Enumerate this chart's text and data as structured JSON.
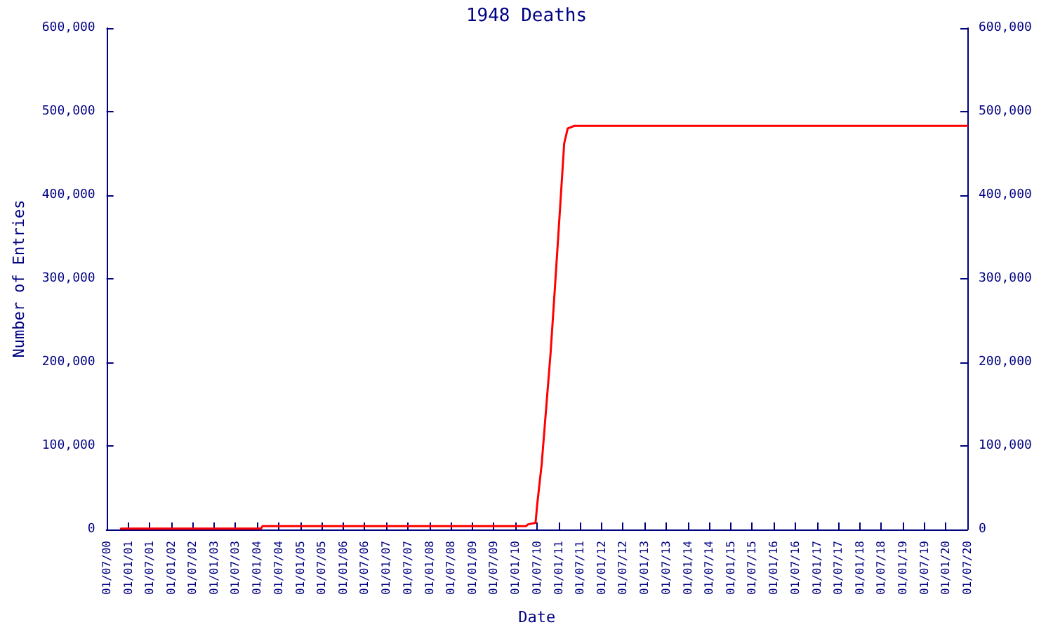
{
  "chart_data": {
    "type": "line",
    "title": "1948 Deaths",
    "xlabel": "Date",
    "ylabel": "Number of Entries",
    "x": [
      "2000-11-01",
      "2004-02-01",
      "2004-02-15",
      "2010-04-01",
      "2010-04-15",
      "2010-06-20",
      "2010-07-04",
      "2010-08-11",
      "2010-09-18",
      "2010-10-26",
      "2010-12-04",
      "2011-01-11",
      "2011-02-18",
      "2011-03-20",
      "2011-05-15",
      "2020-07-01"
    ],
    "series": [
      {
        "color": "#ff0000",
        "values": [
          1000,
          1000,
          4000,
          4000,
          6000,
          8000,
          30000,
          78000,
          145000,
          212000,
          295000,
          378000,
          462000,
          480000,
          483000,
          483000
        ]
      }
    ],
    "xlim": [
      "2000-07-01",
      "2020-07-01"
    ],
    "xticks": [
      {
        "value": "2000-07-01",
        "label": "01/07/00"
      },
      {
        "value": "2001-01-01",
        "label": "01/01/01"
      },
      {
        "value": "2001-07-01",
        "label": "01/07/01"
      },
      {
        "value": "2002-01-01",
        "label": "01/01/02"
      },
      {
        "value": "2002-07-01",
        "label": "01/07/02"
      },
      {
        "value": "2003-01-01",
        "label": "01/01/03"
      },
      {
        "value": "2003-07-01",
        "label": "01/07/03"
      },
      {
        "value": "2004-01-01",
        "label": "01/01/04"
      },
      {
        "value": "2004-07-01",
        "label": "01/07/04"
      },
      {
        "value": "2005-01-01",
        "label": "01/01/05"
      },
      {
        "value": "2005-07-01",
        "label": "01/07/05"
      },
      {
        "value": "2006-01-01",
        "label": "01/01/06"
      },
      {
        "value": "2006-07-01",
        "label": "01/07/06"
      },
      {
        "value": "2007-01-01",
        "label": "01/01/07"
      },
      {
        "value": "2007-07-01",
        "label": "01/07/07"
      },
      {
        "value": "2008-01-01",
        "label": "01/01/08"
      },
      {
        "value": "2008-07-01",
        "label": "01/07/08"
      },
      {
        "value": "2009-01-01",
        "label": "01/01/09"
      },
      {
        "value": "2009-07-01",
        "label": "01/07/09"
      },
      {
        "value": "2010-01-01",
        "label": "01/01/10"
      },
      {
        "value": "2010-07-01",
        "label": "01/07/10"
      },
      {
        "value": "2011-01-01",
        "label": "01/01/11"
      },
      {
        "value": "2011-07-01",
        "label": "01/07/11"
      },
      {
        "value": "2012-01-01",
        "label": "01/01/12"
      },
      {
        "value": "2012-07-01",
        "label": "01/07/12"
      },
      {
        "value": "2013-01-01",
        "label": "01/01/13"
      },
      {
        "value": "2013-07-01",
        "label": "01/07/13"
      },
      {
        "value": "2014-01-01",
        "label": "01/01/14"
      },
      {
        "value": "2014-07-01",
        "label": "01/07/14"
      },
      {
        "value": "2015-01-01",
        "label": "01/01/15"
      },
      {
        "value": "2015-07-01",
        "label": "01/07/15"
      },
      {
        "value": "2016-01-01",
        "label": "01/01/16"
      },
      {
        "value": "2016-07-01",
        "label": "01/07/16"
      },
      {
        "value": "2017-01-01",
        "label": "01/01/17"
      },
      {
        "value": "2017-07-01",
        "label": "01/07/17"
      },
      {
        "value": "2018-01-01",
        "label": "01/01/18"
      },
      {
        "value": "2018-07-01",
        "label": "01/07/18"
      },
      {
        "value": "2019-01-01",
        "label": "01/01/19"
      },
      {
        "value": "2019-07-01",
        "label": "01/07/19"
      },
      {
        "value": "2020-01-01",
        "label": "01/01/20"
      },
      {
        "value": "2020-07-01",
        "label": "01/07/20"
      }
    ],
    "ylim": [
      0,
      600000
    ],
    "yticks": [
      {
        "value": 0,
        "label": "0"
      },
      {
        "value": 100000,
        "label": "100,000"
      },
      {
        "value": 200000,
        "label": "200,000"
      },
      {
        "value": 300000,
        "label": "300,000"
      },
      {
        "value": 400000,
        "label": "400,000"
      },
      {
        "value": 500000,
        "label": "500,000"
      },
      {
        "value": 600000,
        "label": "600,000"
      }
    ],
    "y2lim": [
      0,
      600000
    ],
    "y2ticks": [
      {
        "value": 0,
        "label": "0"
      },
      {
        "value": 100000,
        "label": "100,000"
      },
      {
        "value": 200000,
        "label": "200,000"
      },
      {
        "value": 300000,
        "label": "300,000"
      },
      {
        "value": 400000,
        "label": "400,000"
      },
      {
        "value": 500000,
        "label": "500,000"
      },
      {
        "value": 600000,
        "label": "600,000"
      }
    ],
    "grid": false,
    "marker": "none",
    "line_style": "solid"
  }
}
